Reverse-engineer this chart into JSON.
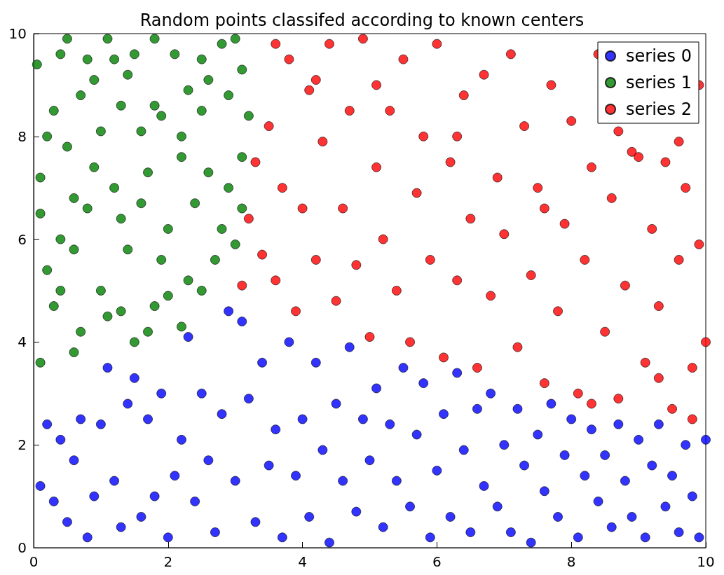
{
  "chart_data": {
    "type": "scatter",
    "title": "Random points classifed according to known centers",
    "xlim": [
      0,
      10
    ],
    "ylim": [
      0,
      10
    ],
    "xticks": [
      0,
      2,
      4,
      6,
      8,
      10
    ],
    "yticks": [
      0,
      2,
      4,
      6,
      8,
      10
    ],
    "grid": false,
    "legend": "top right",
    "marker": "circle",
    "series": [
      {
        "name": "series 0",
        "color": "#0000ff",
        "x": [
          0.1,
          0.2,
          0.3,
          0.4,
          0.5,
          0.6,
          0.7,
          0.8,
          0.9,
          1.0,
          1.1,
          1.2,
          1.3,
          1.4,
          1.5,
          1.6,
          1.7,
          1.8,
          1.9,
          2.0,
          2.1,
          2.2,
          2.3,
          2.4,
          2.5,
          2.6,
          2.7,
          2.8,
          2.9,
          3.0,
          3.1,
          3.2,
          3.3,
          3.4,
          3.5,
          3.6,
          3.7,
          3.8,
          3.9,
          4.0,
          4.1,
          4.2,
          4.3,
          4.4,
          4.5,
          4.6,
          4.7,
          4.8,
          4.9,
          5.0,
          5.1,
          5.2,
          5.3,
          5.4,
          5.5,
          5.6,
          5.7,
          5.8,
          5.9,
          6.0,
          6.1,
          6.2,
          6.3,
          6.4,
          6.5,
          6.6,
          6.7,
          6.8,
          6.9,
          7.0,
          7.1,
          7.2,
          7.3,
          7.4,
          7.5,
          7.6,
          7.7,
          7.8,
          7.9,
          8.0,
          8.1,
          8.2,
          8.3,
          8.4,
          8.5,
          8.6,
          8.7,
          8.8,
          8.9,
          9.0,
          9.1,
          9.2,
          9.3,
          9.4,
          9.5,
          9.6,
          9.7,
          9.8,
          9.9,
          10.0
        ],
        "values": [
          1.2,
          2.4,
          0.9,
          2.1,
          0.5,
          1.7,
          2.5,
          0.2,
          1.0,
          2.4,
          3.5,
          1.3,
          0.4,
          2.8,
          3.3,
          0.6,
          2.5,
          1.0,
          3.0,
          0.2,
          1.4,
          2.1,
          4.1,
          0.9,
          3.0,
          1.7,
          0.3,
          2.6,
          4.6,
          1.3,
          4.4,
          2.9,
          0.5,
          3.6,
          1.6,
          2.3,
          0.2,
          4.0,
          1.4,
          2.5,
          0.6,
          3.6,
          1.9,
          0.1,
          2.8,
          1.3,
          3.9,
          0.7,
          2.5,
          1.7,
          3.1,
          0.4,
          2.4,
          1.3,
          3.5,
          0.8,
          2.2,
          3.2,
          0.2,
          1.5,
          2.6,
          0.6,
          3.4,
          1.9,
          0.3,
          2.7,
          1.2,
          3.0,
          0.8,
          2.0,
          0.3,
          2.7,
          1.6,
          0.1,
          2.2,
          1.1,
          2.8,
          0.6,
          1.8,
          2.5,
          0.2,
          1.4,
          2.3,
          0.9,
          1.8,
          0.4,
          2.4,
          1.3,
          0.6,
          2.1,
          0.2,
          1.6,
          2.4,
          0.8,
          1.4,
          0.3,
          2.0,
          1.0,
          0.2,
          2.1
        ]
      },
      {
        "name": "series 1",
        "color": "#008000",
        "x": [
          0.05,
          0.4,
          0.5,
          0.8,
          1.1,
          1.2,
          1.5,
          1.8,
          2.1,
          2.5,
          2.8,
          3.0,
          0.3,
          0.7,
          1.0,
          1.3,
          1.6,
          1.8,
          2.2,
          2.5,
          2.9,
          3.2,
          0.1,
          0.5,
          0.9,
          1.2,
          1.7,
          2.2,
          2.6,
          3.1,
          0.1,
          0.4,
          0.8,
          1.3,
          1.6,
          2.0,
          2.4,
          2.8,
          3.1,
          0.2,
          0.6,
          1.0,
          1.4,
          1.9,
          2.3,
          2.7,
          3.0,
          0.3,
          0.7,
          1.1,
          1.5,
          1.8,
          2.2,
          2.5,
          0.1,
          0.6,
          1.3,
          1.7,
          2.0,
          0.4,
          2.3,
          1.4,
          0.9,
          2.6,
          3.1,
          0.2,
          1.9,
          0.6,
          2.9
        ],
        "values": [
          9.4,
          9.6,
          9.9,
          9.5,
          9.9,
          9.5,
          9.6,
          9.9,
          9.6,
          9.5,
          9.8,
          9.9,
          8.5,
          8.8,
          8.1,
          8.6,
          8.1,
          8.6,
          8.0,
          8.5,
          8.8,
          8.4,
          7.2,
          7.8,
          7.4,
          7.0,
          7.3,
          7.6,
          7.3,
          7.6,
          6.5,
          6.0,
          6.6,
          6.4,
          6.7,
          6.2,
          6.7,
          6.2,
          6.6,
          5.4,
          5.8,
          5.0,
          5.8,
          5.6,
          5.2,
          5.6,
          5.9,
          4.7,
          4.2,
          4.5,
          4.0,
          4.7,
          4.3,
          5.0,
          3.6,
          3.8,
          4.6,
          4.2,
          4.9,
          5.0,
          8.9,
          9.2,
          9.1,
          9.1,
          9.3,
          8.0,
          8.4,
          6.8,
          7.0
        ]
      },
      {
        "name": "series 2",
        "color": "#ff0000",
        "x": [
          3.1,
          3.2,
          3.3,
          3.4,
          3.5,
          3.6,
          3.7,
          3.8,
          3.9,
          4.0,
          4.1,
          4.2,
          4.3,
          4.4,
          4.5,
          4.6,
          4.7,
          4.8,
          4.9,
          5.0,
          5.1,
          5.2,
          5.3,
          5.4,
          5.5,
          5.6,
          5.7,
          5.8,
          5.9,
          6.0,
          6.1,
          6.2,
          6.3,
          6.4,
          6.5,
          6.6,
          6.7,
          6.8,
          6.9,
          7.0,
          7.1,
          7.2,
          7.3,
          7.4,
          7.5,
          7.6,
          7.7,
          7.8,
          7.9,
          8.0,
          8.1,
          8.2,
          8.3,
          8.4,
          8.5,
          8.6,
          8.7,
          8.8,
          8.9,
          9.0,
          9.1,
          9.2,
          9.3,
          9.4,
          9.5,
          9.6,
          9.7,
          9.8,
          9.9,
          10.0,
          9.9,
          3.6,
          4.2,
          5.1,
          6.3,
          7.6,
          8.7,
          9.6,
          9.3,
          8.3,
          9.8
        ],
        "values": [
          5.1,
          6.4,
          7.5,
          5.7,
          8.2,
          5.2,
          7.0,
          9.5,
          4.6,
          6.6,
          8.9,
          5.6,
          7.9,
          9.8,
          4.8,
          6.6,
          8.5,
          5.5,
          9.9,
          4.1,
          7.4,
          6.0,
          8.5,
          5.0,
          9.5,
          4.0,
          6.9,
          8.0,
          5.6,
          9.8,
          3.7,
          7.5,
          5.2,
          8.8,
          6.4,
          3.5,
          9.2,
          4.9,
          7.2,
          6.1,
          9.6,
          3.9,
          8.2,
          5.3,
          7.0,
          3.2,
          9.0,
          4.6,
          6.3,
          8.3,
          3.0,
          5.6,
          7.4,
          9.6,
          4.2,
          6.8,
          2.9,
          5.1,
          7.7,
          7.6,
          3.6,
          6.2,
          4.7,
          7.5,
          2.7,
          5.6,
          7.0,
          3.5,
          9.0,
          4.0,
          5.9,
          9.8,
          9.1,
          9.0,
          8.0,
          6.6,
          8.1,
          7.9,
          3.3,
          2.8,
          2.5
        ]
      }
    ]
  }
}
